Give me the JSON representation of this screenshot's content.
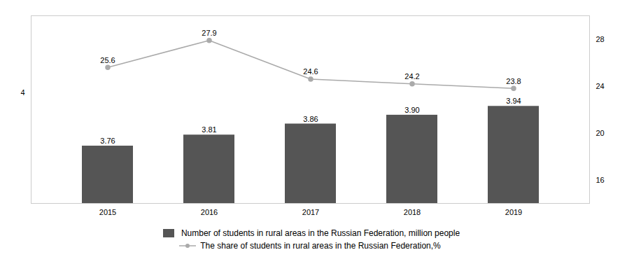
{
  "chart_data": {
    "type": "bar",
    "categories": [
      "2015",
      "2016",
      "2017",
      "2018",
      "2019"
    ],
    "series": [
      {
        "name": "Number of students in rural areas in the Russian Federation, million people",
        "type": "bar",
        "color": "#555555",
        "values": [
          3.76,
          3.81,
          3.86,
          3.9,
          3.94
        ],
        "value_labels": [
          "3.76",
          "3.81",
          "3.86",
          "3.90",
          "3.94"
        ]
      },
      {
        "name": "The share of students in rural areas in the Russian Federation,%",
        "type": "line",
        "axis": "y2",
        "color": "#aaaaaa",
        "marker": "circle",
        "line_style": "solid",
        "values": [
          25.6,
          27.9,
          24.6,
          24.2,
          23.8
        ]
      }
    ],
    "ylim": [
      3.5,
      4.35
    ],
    "yticks": [
      4
    ],
    "y2lim": [
      14,
      30
    ],
    "y2ticks": [
      16,
      20,
      24,
      28
    ],
    "data_labels": true,
    "legend": "bottom",
    "grid": false
  }
}
